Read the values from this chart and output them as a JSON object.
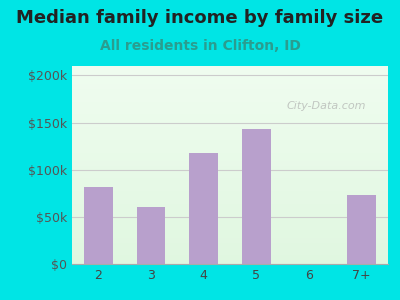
{
  "title": "Median family income by family size",
  "subtitle": "All residents in Clifton, ID",
  "categories": [
    "2",
    "3",
    "4",
    "5",
    "6",
    "7+"
  ],
  "values": [
    82000,
    60000,
    118000,
    143000,
    0,
    73000
  ],
  "bar_color": "#b8a0cc",
  "title_color": "#222222",
  "subtitle_color": "#2a9d8f",
  "outer_bg_color": "#00e5e5",
  "yticks": [
    0,
    50000,
    100000,
    150000,
    200000
  ],
  "ytick_labels": [
    "$0",
    "$50k",
    "$100k",
    "$150k",
    "$200k"
  ],
  "ylim": [
    0,
    210000
  ],
  "grid_color": "#cccccc",
  "watermark": "City-Data.com",
  "title_fontsize": 13,
  "subtitle_fontsize": 10,
  "tick_fontsize": 9
}
